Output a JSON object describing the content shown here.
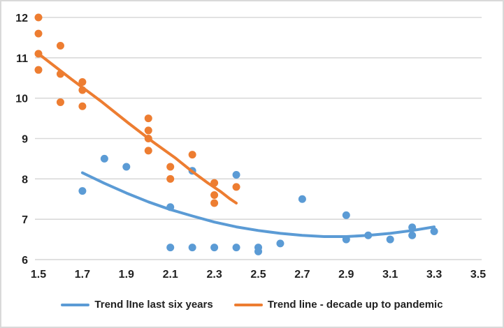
{
  "colors": {
    "blue": "#5B9BD5",
    "orange": "#ED7D31",
    "gridline": "#D9D9D9",
    "text": "#212121",
    "frame_border": "#D9D9D9",
    "background": "#FFFFFF"
  },
  "legend": {
    "position": "bottom",
    "items": [
      {
        "label": "Trend lIne last six years",
        "color": "#5B9BD5"
      },
      {
        "label": "Trend line - decade up to pandemic",
        "color": "#ED7D31"
      }
    ]
  },
  "chart_data": {
    "type": "scatter",
    "title": "",
    "xlabel": "",
    "ylabel": "",
    "xlim": [
      1.5,
      3.5
    ],
    "ylim": [
      6,
      12
    ],
    "x_ticks": [
      "1.5",
      "1.7",
      "1.9",
      "2.1",
      "2.3",
      "2.5",
      "2.7",
      "2.9",
      "3.1",
      "3.3",
      "3.5"
    ],
    "y_ticks": [
      "6",
      "7",
      "8",
      "9",
      "10",
      "11",
      "12"
    ],
    "grid": "horizontal",
    "legend_position": "bottom",
    "series": [
      {
        "name": "Trend lIne last six years",
        "color": "#5B9BD5",
        "points": [
          [
            1.7,
            7.7
          ],
          [
            1.8,
            8.5
          ],
          [
            1.9,
            8.3
          ],
          [
            2.1,
            7.3
          ],
          [
            2.1,
            6.3
          ],
          [
            2.2,
            8.2
          ],
          [
            2.2,
            6.3
          ],
          [
            2.3,
            6.3
          ],
          [
            2.4,
            8.1
          ],
          [
            2.4,
            6.3
          ],
          [
            2.5,
            6.3
          ],
          [
            2.5,
            6.2
          ],
          [
            2.6,
            6.4
          ],
          [
            2.7,
            7.5
          ],
          [
            2.9,
            7.1
          ],
          [
            2.9,
            6.5
          ],
          [
            3.0,
            6.6
          ],
          [
            3.1,
            6.5
          ],
          [
            3.2,
            6.8
          ],
          [
            3.2,
            6.6
          ],
          [
            3.3,
            6.7
          ]
        ],
        "trendline": [
          [
            1.7,
            8.15
          ],
          [
            1.8,
            7.89
          ],
          [
            1.9,
            7.65
          ],
          [
            2.0,
            7.43
          ],
          [
            2.1,
            7.24
          ],
          [
            2.2,
            7.08
          ],
          [
            2.3,
            6.93
          ],
          [
            2.4,
            6.81
          ],
          [
            2.5,
            6.72
          ],
          [
            2.6,
            6.65
          ],
          [
            2.7,
            6.6
          ],
          [
            2.8,
            6.57
          ],
          [
            2.9,
            6.57
          ],
          [
            3.0,
            6.6
          ],
          [
            3.1,
            6.65
          ],
          [
            3.2,
            6.72
          ],
          [
            3.3,
            6.81
          ]
        ]
      },
      {
        "name": "Trend line - decade up to pandemic",
        "color": "#ED7D31",
        "points": [
          [
            1.5,
            12.0
          ],
          [
            1.5,
            11.6
          ],
          [
            1.5,
            11.1
          ],
          [
            1.5,
            10.7
          ],
          [
            1.6,
            11.3
          ],
          [
            1.6,
            10.6
          ],
          [
            1.6,
            9.9
          ],
          [
            1.7,
            10.4
          ],
          [
            1.7,
            10.2
          ],
          [
            1.7,
            9.8
          ],
          [
            2.0,
            9.5
          ],
          [
            2.0,
            9.2
          ],
          [
            2.0,
            9.0
          ],
          [
            2.0,
            8.7
          ],
          [
            2.1,
            8.3
          ],
          [
            2.1,
            8.0
          ],
          [
            2.2,
            8.6
          ],
          [
            2.3,
            7.9
          ],
          [
            2.3,
            7.6
          ],
          [
            2.3,
            7.4
          ],
          [
            2.4,
            7.8
          ]
        ],
        "trendline": [
          [
            1.5,
            11.1
          ],
          [
            1.65,
            10.47
          ],
          [
            1.79,
            9.9
          ],
          [
            1.91,
            9.38
          ],
          [
            2.02,
            8.92
          ],
          [
            2.12,
            8.53
          ],
          [
            2.2,
            8.18
          ],
          [
            2.27,
            7.9
          ],
          [
            2.33,
            7.68
          ],
          [
            2.37,
            7.51
          ],
          [
            2.4,
            7.4
          ]
        ]
      }
    ]
  }
}
